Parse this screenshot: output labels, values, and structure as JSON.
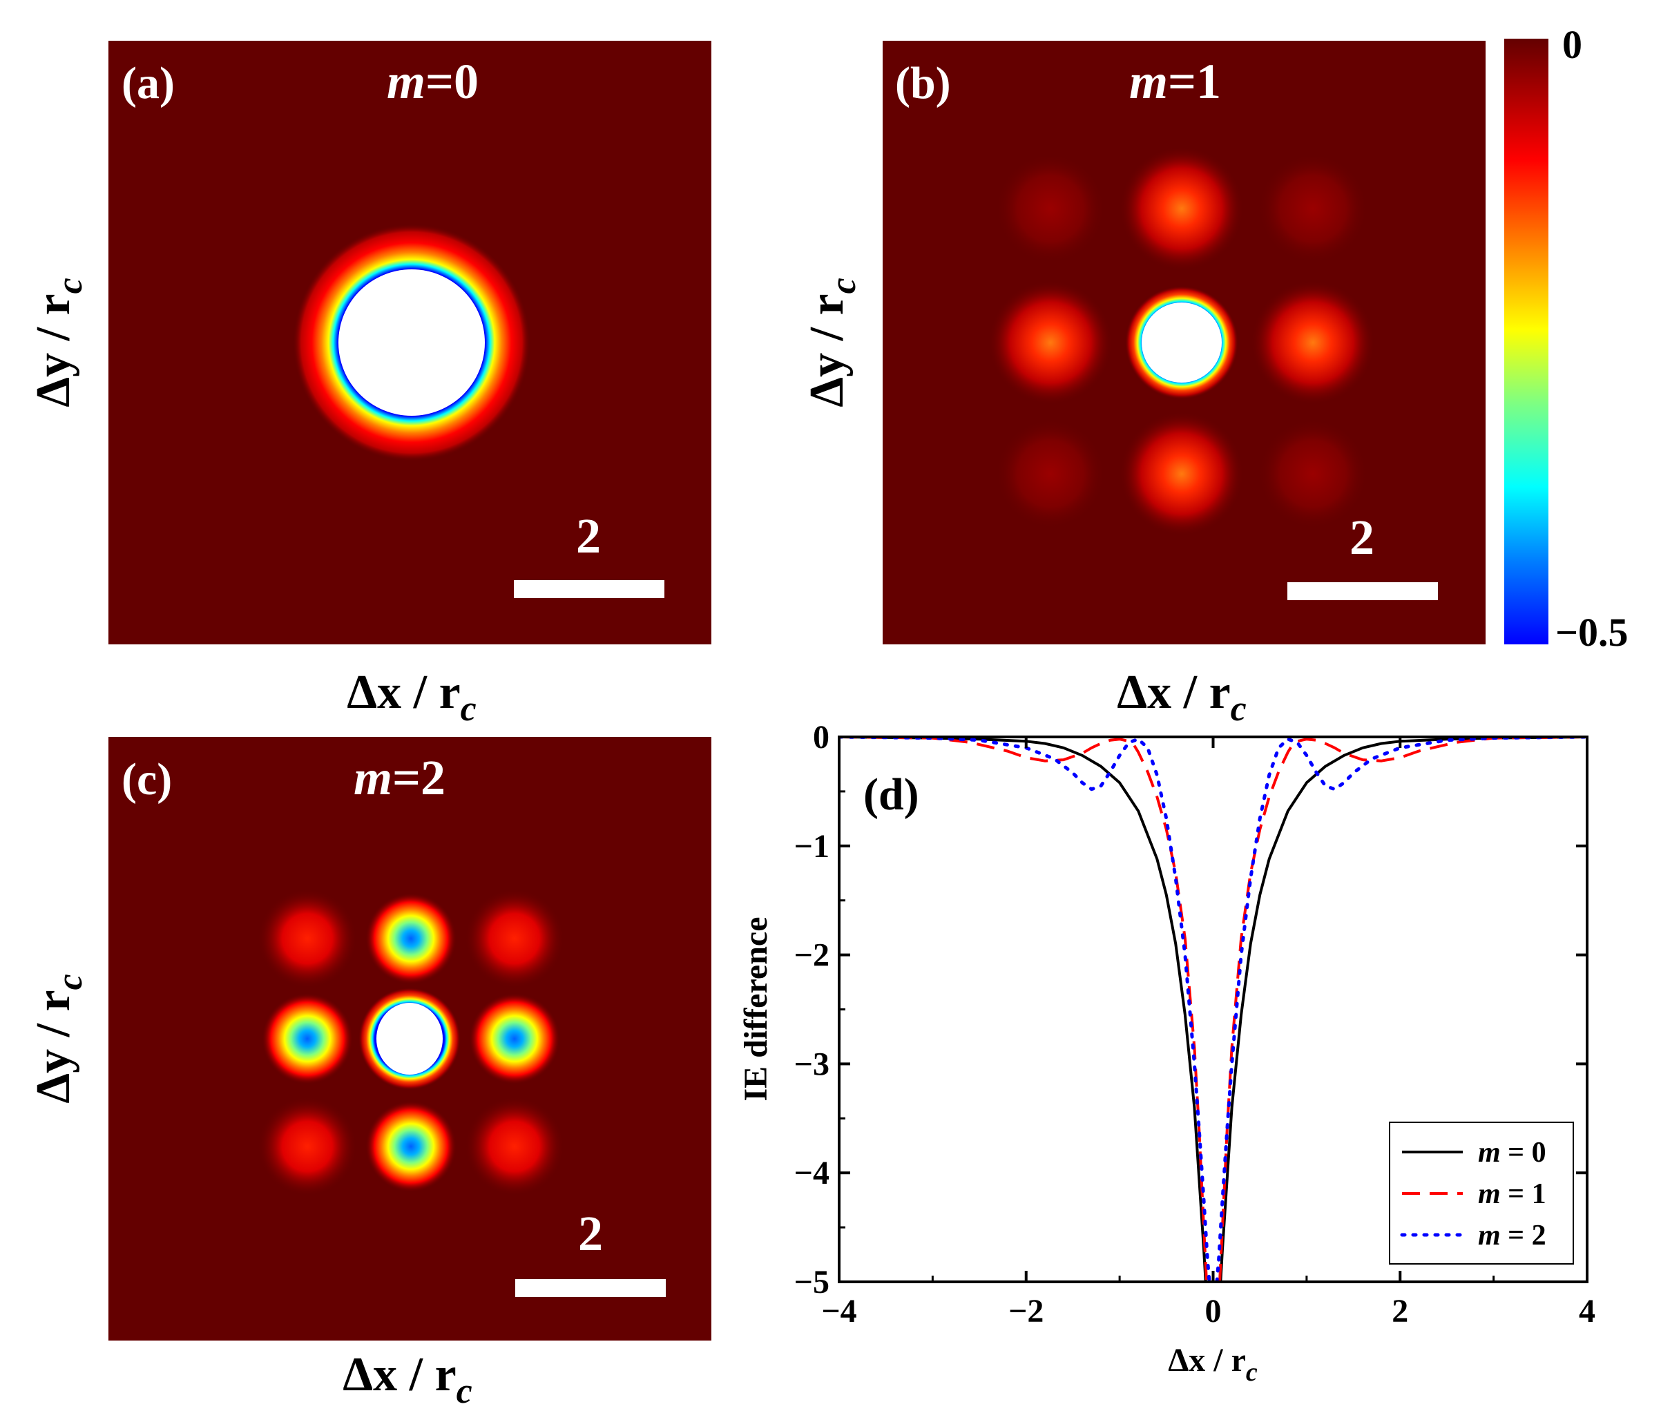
{
  "colors": {
    "background": "#640000",
    "hole": "#ffffff",
    "m0": "#000000",
    "m1": "#ff0000",
    "m2": "#0000ff",
    "colormap": "jet"
  },
  "panels": [
    {
      "letter": "(a)",
      "m_symbol": "m",
      "m_value": "=0",
      "scale_label": "2",
      "xlabel": "Δx / r",
      "xlabel_sub": "c",
      "ylabel": "Δy / r",
      "ylabel_sub": "c"
    },
    {
      "letter": "(b)",
      "m_symbol": "m",
      "m_value": "=1",
      "scale_label": "2",
      "xlabel": "Δx / r",
      "xlabel_sub": "c",
      "ylabel": "Δy / r",
      "ylabel_sub": "c"
    },
    {
      "letter": "(c)",
      "m_symbol": "m",
      "m_value": "=2",
      "scale_label": "2",
      "xlabel": "Δx / r",
      "xlabel_sub": "c",
      "ylabel": "Δy / r",
      "ylabel_sub": "c"
    }
  ],
  "colorbar": {
    "max_label": "0",
    "min_label": "−0.5",
    "range": [
      -0.5,
      0
    ]
  },
  "chart_data": [
    {
      "type": "heatmap",
      "panel": "(a)",
      "title": "m=0",
      "xlabel": "Δx / rc",
      "ylabel": "Δy / rc",
      "color_range": [
        -0.5,
        0
      ],
      "scale_bar": 2,
      "features": [
        {
          "x": 0,
          "y": 0,
          "kind": "central hole"
        }
      ]
    },
    {
      "type": "heatmap",
      "panel": "(b)",
      "title": "m=1",
      "xlabel": "Δx / rc",
      "ylabel": "Δy / rc",
      "color_range": [
        -0.5,
        0
      ],
      "scale_bar": 2,
      "features": [
        {
          "x": 0,
          "y": 0,
          "kind": "central hole"
        },
        {
          "x": -1.75,
          "y": 0,
          "value": -0.18
        },
        {
          "x": 1.75,
          "y": 0,
          "value": -0.18
        },
        {
          "x": 0,
          "y": 1.75,
          "value": -0.18
        },
        {
          "x": 0,
          "y": -1.75,
          "value": -0.18
        },
        {
          "x": -1.75,
          "y": 1.75,
          "value": -0.04
        },
        {
          "x": 1.75,
          "y": 1.75,
          "value": -0.04
        },
        {
          "x": -1.75,
          "y": -1.75,
          "value": -0.04
        },
        {
          "x": 1.75,
          "y": -1.75,
          "value": -0.04
        }
      ]
    },
    {
      "type": "heatmap",
      "panel": "(c)",
      "title": "m=2",
      "xlabel": "Δx / rc",
      "ylabel": "Δy / rc",
      "color_range": [
        -0.5,
        0
      ],
      "scale_bar": 2,
      "features": [
        {
          "x": 0,
          "y": 0,
          "kind": "central hole"
        },
        {
          "x": -1.35,
          "y": 0,
          "value": -0.48
        },
        {
          "x": 1.35,
          "y": 0,
          "value": -0.48
        },
        {
          "x": 0,
          "y": 1.35,
          "value": -0.48
        },
        {
          "x": 0,
          "y": -1.35,
          "value": -0.48
        },
        {
          "x": -1.35,
          "y": 1.35,
          "value": -0.17
        },
        {
          "x": 1.35,
          "y": 1.35,
          "value": -0.17
        },
        {
          "x": -1.35,
          "y": -1.35,
          "value": -0.17
        },
        {
          "x": 1.35,
          "y": -1.35,
          "value": -0.17
        }
      ]
    },
    {
      "type": "line",
      "panel": "(d)",
      "xlabel": "Δx / r",
      "xlabel_sub": "c",
      "ylabel": "IE difference",
      "xlim": [
        -4,
        4
      ],
      "ylim": [
        -5,
        0
      ],
      "xticks": [
        -4,
        -2,
        0,
        2,
        4
      ],
      "yticks": [
        0,
        -1,
        -2,
        -3,
        -4,
        -5
      ],
      "xtick_labels": [
        "−4",
        "−2",
        "0",
        "2",
        "4"
      ],
      "ytick_labels": [
        "0",
        "−1",
        "−2",
        "−3",
        "−4",
        "−5"
      ],
      "legend_position": "bottom-right",
      "series": [
        {
          "name": "m = 0",
          "legend_symbol": "m",
          "legend_value": " = 0",
          "style": "solid",
          "x": [
            -4,
            -3,
            -2.5,
            -2,
            -1.8,
            -1.6,
            -1.4,
            -1.2,
            -1.0,
            -0.8,
            -0.6,
            -0.5,
            -0.4,
            -0.3,
            -0.2,
            -0.15,
            -0.1,
            -0.08
          ],
          "y": [
            0,
            -0.01,
            -0.02,
            -0.04,
            -0.06,
            -0.1,
            -0.17,
            -0.27,
            -0.42,
            -0.68,
            -1.12,
            -1.45,
            -1.9,
            -2.55,
            -3.4,
            -4.05,
            -4.7,
            -5
          ]
        },
        {
          "name": "m = 1",
          "legend_symbol": "m",
          "legend_value": " = 1",
          "style": "dashed",
          "x": [
            -4,
            -3,
            -2.6,
            -2.2,
            -2.0,
            -1.8,
            -1.6,
            -1.4,
            -1.3,
            -1.2,
            -1.1,
            -1.0,
            -0.9,
            -0.85,
            -0.8,
            -0.7,
            -0.6,
            -0.5,
            -0.4,
            -0.3,
            -0.2,
            -0.15,
            -0.1,
            -0.07
          ],
          "y": [
            0,
            -0.01,
            -0.05,
            -0.13,
            -0.19,
            -0.22,
            -0.21,
            -0.15,
            -0.1,
            -0.06,
            -0.03,
            -0.02,
            -0.04,
            -0.07,
            -0.14,
            -0.32,
            -0.55,
            -0.85,
            -1.25,
            -1.85,
            -2.85,
            -3.6,
            -4.5,
            -5
          ]
        },
        {
          "name": "m = 2",
          "legend_symbol": "m",
          "legend_value": " = 2",
          "style": "dotted",
          "x": [
            -4,
            -3,
            -2.5,
            -2.0,
            -1.7,
            -1.5,
            -1.4,
            -1.3,
            -1.2,
            -1.1,
            -1.0,
            -0.9,
            -0.8,
            -0.7,
            -0.6,
            -0.5,
            -0.4,
            -0.3,
            -0.2,
            -0.15,
            -0.1,
            -0.06,
            -0.04
          ],
          "y": [
            0,
            -0.01,
            -0.03,
            -0.1,
            -0.2,
            -0.33,
            -0.42,
            -0.48,
            -0.45,
            -0.32,
            -0.17,
            -0.05,
            -0.02,
            -0.1,
            -0.35,
            -0.75,
            -1.3,
            -2.0,
            -3.0,
            -3.6,
            -4.25,
            -4.8,
            -5
          ]
        }
      ]
    }
  ],
  "panel_d_letter": "(d)"
}
